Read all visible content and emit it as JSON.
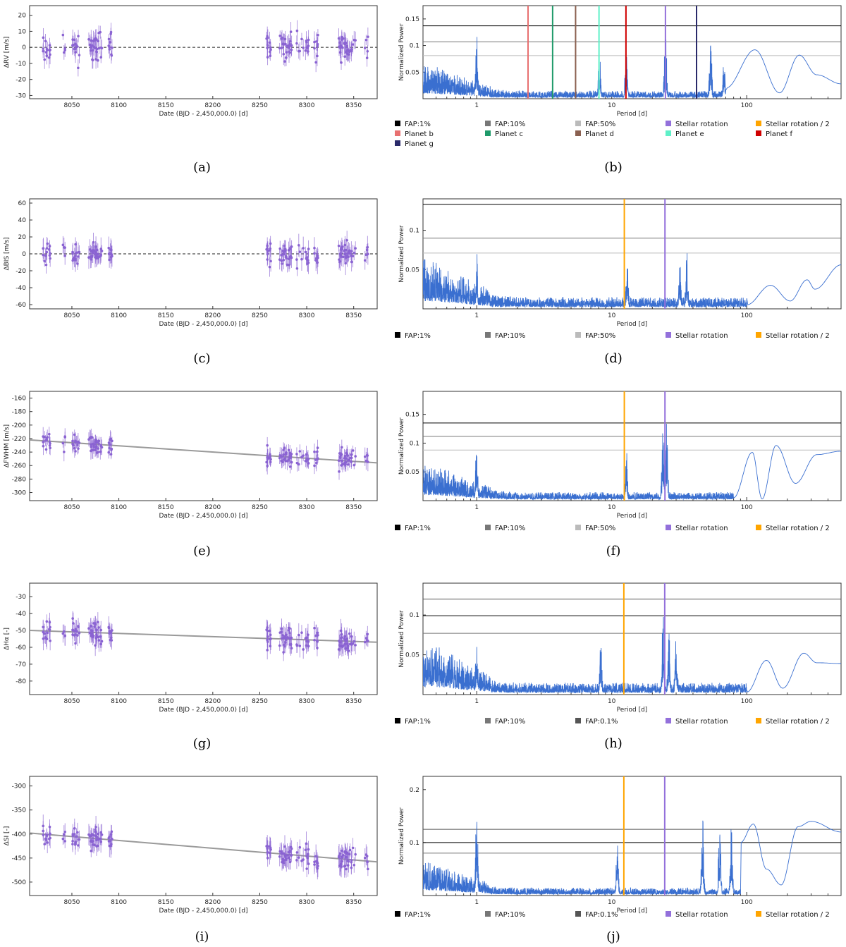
{
  "colors": {
    "points": "#8a63d2",
    "periodogram": "#3a6fd0",
    "trend": "#9a9a9a",
    "fap1": "#000000",
    "fap10": "#777777",
    "fap50": "#bbbbbb",
    "fap01": "#555555",
    "stellar_rotation": "#9370db",
    "stellar_rotation_half": "#ffa500",
    "planet_b": "#e87070",
    "planet_c": "#1f9a6a",
    "planet_d": "#8a6050",
    "planet_e": "#5ff0c8",
    "planet_f": "#d00000",
    "planet_g": "#2a2a6a"
  },
  "chart_data": [
    {
      "type": "scatter",
      "caption": "(a)",
      "xlabel": "Date (BJD - 2,450,000.0) [d]",
      "ylabel": "ΔRV [m/s]",
      "xlim": [
        8005,
        8375
      ],
      "ylim": [
        -32,
        26
      ],
      "xticks": [
        8050,
        8100,
        8150,
        8200,
        8250,
        8300,
        8350
      ],
      "yticks": [
        -30,
        -20,
        -10,
        0,
        10,
        20
      ],
      "seed": 11,
      "base_at_start": 0,
      "base_at_end": 0,
      "spread": 8,
      "err": 5,
      "zero_line": true,
      "trend": false
    },
    {
      "type": "line",
      "caption": "(b)",
      "scale": "log",
      "xlabel": "Period [d]",
      "ylabel": "Normalized Power",
      "xlim": [
        0.4,
        500
      ],
      "ylim": [
        0,
        0.175
      ],
      "xticks": [
        1,
        10,
        100
      ],
      "yticks": [
        0.05,
        0.1,
        0.15
      ],
      "hlines": [
        {
          "name": "FAP:1%",
          "y": 0.137,
          "color": "fap1"
        },
        {
          "name": "FAP:10%",
          "y": 0.107,
          "color": "fap10"
        },
        {
          "name": "FAP:50%",
          "y": 0.081,
          "color": "fap50"
        }
      ],
      "vlines": [
        {
          "name": "Planet b",
          "x": 2.4,
          "color": "planet_b"
        },
        {
          "name": "Planet c",
          "x": 3.65,
          "color": "planet_c"
        },
        {
          "name": "Planet d",
          "x": 5.4,
          "color": "planet_d"
        },
        {
          "name": "Planet e",
          "x": 8.05,
          "color": "planet_e"
        },
        {
          "name": "Planet f",
          "x": 12.75,
          "color": "planet_f"
        },
        {
          "name": "Planet g",
          "x": 42.5,
          "color": "planet_g"
        },
        {
          "name": "Stellar rotation",
          "x": 25,
          "color": "stellar_rotation"
        }
      ],
      "peaks": [
        {
          "x": 1.0,
          "y": 0.16
        },
        {
          "x": 8.1,
          "y": 0.12
        },
        {
          "x": 12.8,
          "y": 0.14
        },
        {
          "x": 25,
          "y": 0.16
        },
        {
          "x": 54,
          "y": 0.14
        },
        {
          "x": 68,
          "y": 0.12
        }
      ],
      "tail": [
        [
          70,
          0.02
        ],
        [
          115,
          0.092
        ],
        [
          175,
          0.011
        ],
        [
          245,
          0.082
        ],
        [
          330,
          0.045
        ],
        [
          500,
          0.028
        ]
      ],
      "seed": 21,
      "legend": [
        {
          "label": "FAP:1%",
          "color": "fap1"
        },
        {
          "label": "FAP:10%",
          "color": "fap10"
        },
        {
          "label": "FAP:50%",
          "color": "fap50"
        },
        {
          "label": "Stellar rotation",
          "color": "stellar_rotation"
        },
        {
          "label": "Stellar rotation / 2",
          "color": "stellar_rotation_half"
        },
        {
          "label": "Planet b",
          "color": "planet_b"
        },
        {
          "label": "Planet c",
          "color": "planet_c"
        },
        {
          "label": "Planet d",
          "color": "planet_d"
        },
        {
          "label": "Planet e",
          "color": "planet_e"
        },
        {
          "label": "Planet f",
          "color": "planet_f"
        },
        {
          "label": "Planet g",
          "color": "planet_g"
        }
      ]
    },
    {
      "type": "scatter",
      "caption": "(c)",
      "xlabel": "Date (BJD - 2,450,000.0) [d]",
      "ylabel": "ΔBIS [m/s]",
      "xlim": [
        8005,
        8375
      ],
      "ylim": [
        -65,
        65
      ],
      "xticks": [
        8050,
        8100,
        8150,
        8200,
        8250,
        8300,
        8350
      ],
      "yticks": [
        -60,
        -40,
        -20,
        0,
        20,
        40,
        60
      ],
      "seed": 31,
      "base_at_start": 0,
      "base_at_end": 0,
      "spread": 12,
      "err": 10,
      "zero_line": true,
      "trend": false
    },
    {
      "type": "line",
      "caption": "(d)",
      "scale": "log",
      "xlabel": "Period [d]",
      "ylabel": "Normalized Power",
      "xlim": [
        0.4,
        500
      ],
      "ylim": [
        0,
        0.14
      ],
      "xticks": [
        1,
        10,
        100
      ],
      "yticks": [
        0.05,
        0.1
      ],
      "hlines": [
        {
          "name": "FAP:1%",
          "y": 0.133,
          "color": "fap1"
        },
        {
          "name": "FAP:10%",
          "y": 0.09,
          "color": "fap10"
        },
        {
          "name": "FAP:50%",
          "y": 0.071,
          "color": "fap50"
        }
      ],
      "vlines": [
        {
          "name": "Stellar rotation / 2",
          "x": 12.4,
          "color": "stellar_rotation_half"
        },
        {
          "name": "Stellar rotation",
          "x": 24.8,
          "color": "stellar_rotation"
        }
      ],
      "peaks": [
        {
          "x": 1.0,
          "y": 0.092
        },
        {
          "x": 13,
          "y": 0.095
        },
        {
          "x": 36,
          "y": 0.085
        },
        {
          "x": 32,
          "y": 0.078
        }
      ],
      "tail": [
        [
          100,
          0.005
        ],
        [
          150,
          0.03
        ],
        [
          210,
          0.01
        ],
        [
          280,
          0.037
        ],
        [
          320,
          0.025
        ],
        [
          500,
          0.056
        ]
      ],
      "seed": 41,
      "legend": [
        {
          "label": "FAP:1%",
          "color": "fap1"
        },
        {
          "label": "FAP:10%",
          "color": "fap10"
        },
        {
          "label": "FAP:50%",
          "color": "fap50"
        },
        {
          "label": "Stellar rotation",
          "color": "stellar_rotation"
        },
        {
          "label": "Stellar rotation / 2",
          "color": "stellar_rotation_half"
        }
      ]
    },
    {
      "type": "scatter",
      "caption": "(e)",
      "xlabel": "Date (BJD - 2,450,000.0) [d]",
      "ylabel": "ΔFWHM [m/s]",
      "xlim": [
        8005,
        8375
      ],
      "ylim": [
        -312,
        -150
      ],
      "xticks": [
        8050,
        8100,
        8150,
        8200,
        8250,
        8300,
        8350
      ],
      "yticks": [
        -300,
        -280,
        -260,
        -240,
        -220,
        -200,
        -180,
        -160
      ],
      "seed": 51,
      "base_at_start": -222,
      "base_at_end": -256,
      "spread": 14,
      "err": 10,
      "zero_line": false,
      "trend": true
    },
    {
      "type": "line",
      "caption": "(f)",
      "scale": "log",
      "xlabel": "Period [d]",
      "ylabel": "Normalized Power",
      "xlim": [
        0.4,
        500
      ],
      "ylim": [
        0,
        0.19
      ],
      "xticks": [
        1,
        10,
        100
      ],
      "yticks": [
        0.05,
        0.1,
        0.15
      ],
      "hlines": [
        {
          "name": "FAP:1%",
          "y": 0.135,
          "color": "fap1"
        },
        {
          "name": "FAP:10%",
          "y": 0.112,
          "color": "fap10"
        },
        {
          "name": "FAP:50%",
          "y": 0.088,
          "color": "fap50"
        }
      ],
      "vlines": [
        {
          "name": "Stellar rotation / 2",
          "x": 12.4,
          "color": "stellar_rotation_half"
        },
        {
          "name": "Stellar rotation",
          "x": 24.8,
          "color": "stellar_rotation"
        }
      ],
      "peaks": [
        {
          "x": 1.0,
          "y": 0.15
        },
        {
          "x": 12.8,
          "y": 0.13
        },
        {
          "x": 24,
          "y": 0.17
        },
        {
          "x": 25.5,
          "y": 0.185
        }
      ],
      "tail": [
        [
          80,
          0.005
        ],
        [
          110,
          0.084
        ],
        [
          130,
          0.003
        ],
        [
          165,
          0.096
        ],
        [
          230,
          0.03
        ],
        [
          330,
          0.08
        ],
        [
          500,
          0.086
        ]
      ],
      "seed": 61,
      "legend": [
        {
          "label": "FAP:1%",
          "color": "fap1"
        },
        {
          "label": "FAP:10%",
          "color": "fap10"
        },
        {
          "label": "FAP:50%",
          "color": "fap50"
        },
        {
          "label": "Stellar rotation",
          "color": "stellar_rotation"
        },
        {
          "label": "Stellar rotation / 2",
          "color": "stellar_rotation_half"
        }
      ]
    },
    {
      "type": "scatter",
      "caption": "(g)",
      "xlabel": "Date (BJD - 2,450,000.0) [d]",
      "ylabel": "ΔHα [-]",
      "xlim": [
        8005,
        8375
      ],
      "ylim": [
        -88,
        -22
      ],
      "xticks": [
        8050,
        8100,
        8150,
        8200,
        8250,
        8300,
        8350
      ],
      "yticks": [
        -80,
        -70,
        -60,
        -50,
        -40,
        -30
      ],
      "seed": 71,
      "base_at_start": -50,
      "base_at_end": -57,
      "spread": 6,
      "err": 5,
      "zero_line": false,
      "trend": true
    },
    {
      "type": "line",
      "caption": "(h)",
      "scale": "log",
      "xlabel": "Period [d]",
      "ylabel": "Normalized Power",
      "xlim": [
        0.4,
        500
      ],
      "ylim": [
        0,
        0.14
      ],
      "xticks": [
        1,
        10,
        100
      ],
      "yticks": [
        0.05,
        0.1
      ],
      "hlines": [
        {
          "name": "FAP:0.1%",
          "y": 0.12,
          "color": "fap01"
        },
        {
          "name": "FAP:1%",
          "y": 0.099,
          "color": "fap1"
        },
        {
          "name": "FAP:10%",
          "y": 0.077,
          "color": "fap10"
        }
      ],
      "vlines": [
        {
          "name": "Stellar rotation / 2",
          "x": 12.3,
          "color": "stellar_rotation_half"
        },
        {
          "name": "Stellar rotation",
          "x": 24.7,
          "color": "stellar_rotation"
        }
      ],
      "peaks": [
        {
          "x": 1.0,
          "y": 0.105
        },
        {
          "x": 8.3,
          "y": 0.085
        },
        {
          "x": 24,
          "y": 0.132
        },
        {
          "x": 26.5,
          "y": 0.105
        },
        {
          "x": 30,
          "y": 0.1
        }
      ],
      "tail": [
        [
          100,
          0.003
        ],
        [
          140,
          0.043
        ],
        [
          185,
          0.008
        ],
        [
          265,
          0.052
        ],
        [
          330,
          0.04
        ],
        [
          500,
          0.039
        ]
      ],
      "seed": 81,
      "legend": [
        {
          "label": "FAP:1%",
          "color": "fap1"
        },
        {
          "label": "FAP:10%",
          "color": "fap10"
        },
        {
          "label": "FAP:0.1%",
          "color": "fap01"
        },
        {
          "label": "Stellar rotation",
          "color": "stellar_rotation"
        },
        {
          "label": "Stellar rotation / 2",
          "color": "stellar_rotation_half"
        }
      ]
    },
    {
      "type": "scatter",
      "caption": "(i)",
      "xlabel": "Date (BJD - 2,450,000.0) [d]",
      "ylabel": "ΔSI [-]",
      "xlim": [
        8005,
        8375
      ],
      "ylim": [
        -528,
        -280
      ],
      "xticks": [
        8050,
        8100,
        8150,
        8200,
        8250,
        8300,
        8350
      ],
      "yticks": [
        -500,
        -450,
        -400,
        -350,
        -300
      ],
      "seed": 91,
      "base_at_start": -398,
      "base_at_end": -458,
      "spread": 22,
      "err": 18,
      "zero_line": false,
      "trend": true
    },
    {
      "type": "line",
      "caption": "(j)",
      "scale": "log",
      "xlabel": "Period [d]",
      "ylabel": "Normalized Power",
      "xlim": [
        0.4,
        500
      ],
      "ylim": [
        0,
        0.225
      ],
      "xticks": [
        1,
        10,
        100
      ],
      "yticks": [
        0.1,
        0.2
      ],
      "hlines": [
        {
          "name": "FAP:0.1%",
          "y": 0.125,
          "color": "fap01"
        },
        {
          "name": "FAP:1%",
          "y": 0.1,
          "color": "fap1"
        },
        {
          "name": "FAP:10%",
          "y": 0.08,
          "color": "fap10"
        }
      ],
      "vlines": [
        {
          "name": "Stellar rotation / 2",
          "x": 12.3,
          "color": "stellar_rotation_half"
        },
        {
          "name": "Stellar rotation",
          "x": 24.7,
          "color": "stellar_rotation"
        }
      ],
      "peaks": [
        {
          "x": 1.0,
          "y": 0.21
        },
        {
          "x": 11,
          "y": 0.135
        },
        {
          "x": 47,
          "y": 0.205
        },
        {
          "x": 63,
          "y": 0.19
        },
        {
          "x": 77,
          "y": 0.2
        }
      ],
      "tail": [
        [
          90,
          0.1
        ],
        [
          112,
          0.135
        ],
        [
          140,
          0.05
        ],
        [
          180,
          0.02
        ],
        [
          240,
          0.13
        ],
        [
          300,
          0.14
        ],
        [
          500,
          0.12
        ]
      ],
      "seed": 101,
      "legend": [
        {
          "label": "FAP:1%",
          "color": "fap1"
        },
        {
          "label": "FAP:10%",
          "color": "fap10"
        },
        {
          "label": "FAP:0.1%",
          "color": "fap01"
        },
        {
          "label": "Stellar rotation",
          "color": "stellar_rotation"
        },
        {
          "label": "Stellar rotation / 2",
          "color": "stellar_rotation_half"
        }
      ]
    }
  ]
}
